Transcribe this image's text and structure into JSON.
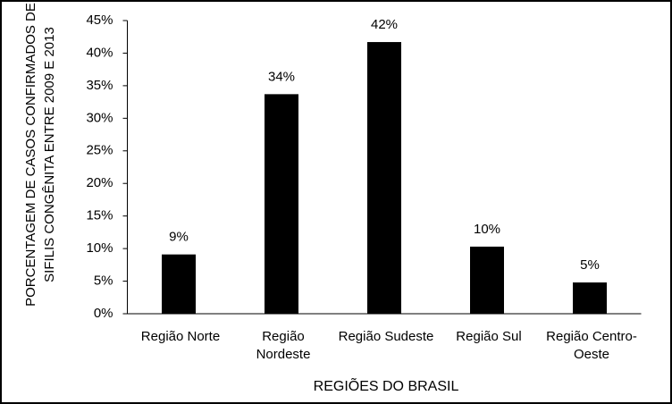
{
  "chart_data": {
    "type": "bar",
    "y_label": "PORCENTAGEM DE CASOS CONFIRMADOS DE SIFILIS CONGÊNITA ENTRE 2009 E 2013",
    "x_label": "REGIÕES DO BRASIL",
    "categories": [
      "Região Norte",
      "Região Nordeste",
      "Região Sudeste",
      "Região Sul",
      "Região Centro-Oeste"
    ],
    "values": [
      9.1,
      33.7,
      41.7,
      10.3,
      4.8
    ],
    "value_labels": [
      "9%",
      "34%",
      "42%",
      "10%",
      "5%"
    ],
    "color": "#000000",
    "ylim": [
      0,
      45
    ],
    "yticks": [
      {
        "value": 0,
        "label": "0%"
      },
      {
        "value": 5,
        "label": "5%"
      },
      {
        "value": 10,
        "label": "10%"
      },
      {
        "value": 15,
        "label": "15%"
      },
      {
        "value": 20,
        "label": "20%"
      },
      {
        "value": 25,
        "label": "25%"
      },
      {
        "value": 30,
        "label": "30%"
      },
      {
        "value": 35,
        "label": "35%"
      },
      {
        "value": 40,
        "label": "40%"
      },
      {
        "value": 45,
        "label": "45%"
      }
    ],
    "grid": false
  }
}
